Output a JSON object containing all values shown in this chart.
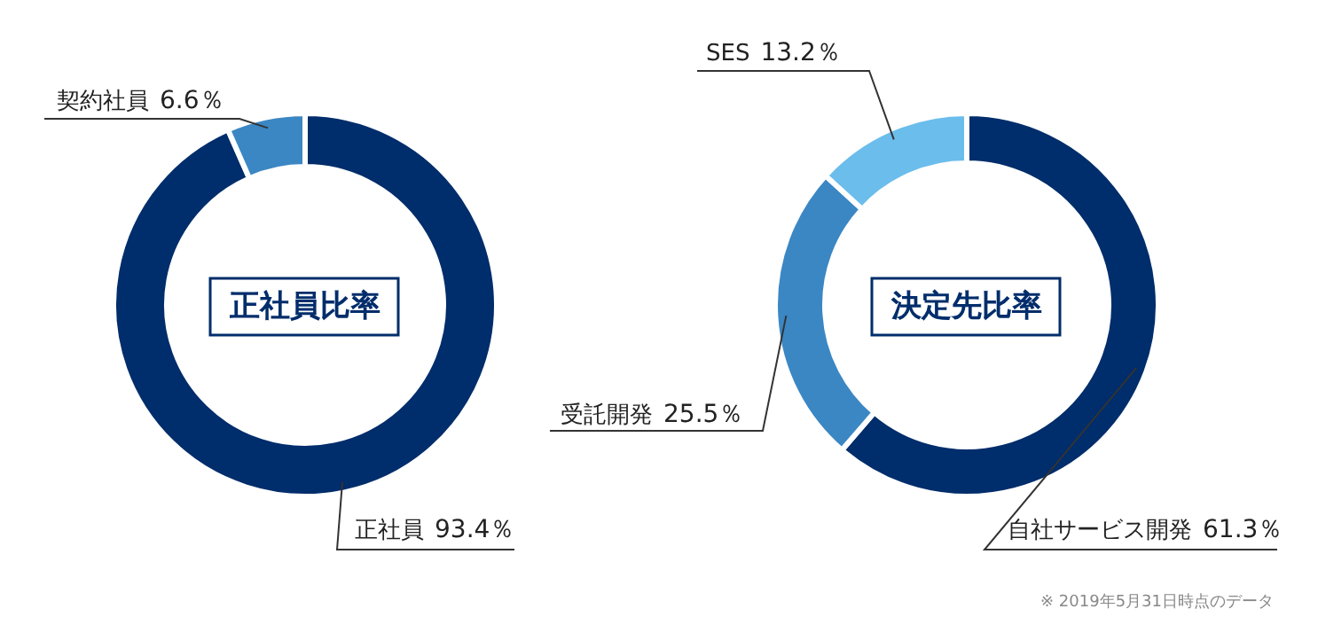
{
  "chart_data": [
    {
      "type": "donut",
      "title": "正社員比率",
      "categories": [
        "正社員",
        "契約社員"
      ],
      "values": [
        93.4,
        6.6
      ],
      "colors": [
        "#002d6b",
        "#3b87c4"
      ],
      "value_labels": [
        "93.4％",
        "6.6％"
      ]
    },
    {
      "type": "donut",
      "title": "決定先比率",
      "categories": [
        "自社サービス開発",
        "受託開発",
        "SES"
      ],
      "values": [
        61.3,
        25.5,
        13.2
      ],
      "colors": [
        "#002d6b",
        "#3b87c4",
        "#6bbdeb"
      ],
      "value_labels": [
        "61.3％",
        "25.5％",
        "13.2％"
      ],
      "annotations": [
        "※ 2019年5月31日時点のデータ"
      ]
    }
  ]
}
